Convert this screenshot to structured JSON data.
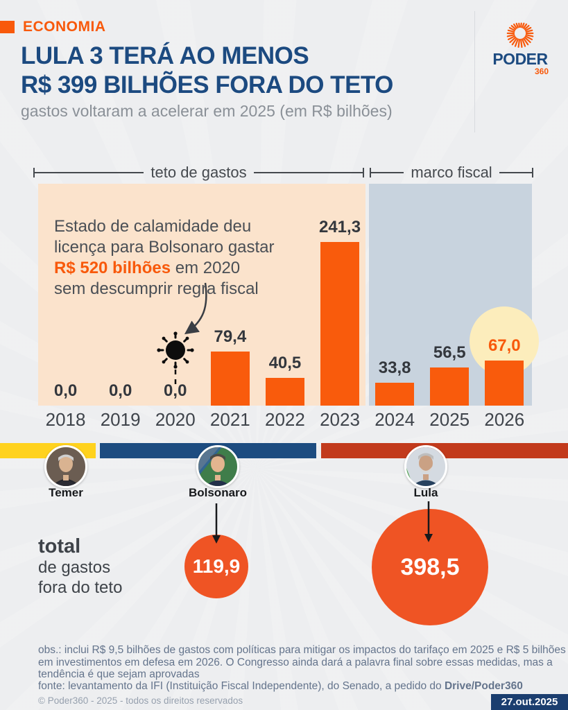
{
  "colors": {
    "accent_orange": "#f8590b",
    "bar_orange": "#f95b0c",
    "title_navy": "#1c4a80",
    "region_teto_bg": "#fbe3cc",
    "region_marco_bg": "#c8d3de",
    "highlight_circle": "#fcedbc",
    "strip_temer": "#ffd21e",
    "strip_bolsonaro": "#1d4c80",
    "strip_lula": "#c23a1c",
    "total_circle": "#ef5424",
    "badge_navy": "#1b3e6f"
  },
  "header": {
    "kicker": "ECONOMIA",
    "title_line1": "LULA 3 TERÁ AO MENOS",
    "title_line2": "R$ 399 BILHÕES FORA DO TETO",
    "subtitle": "gastos voltaram a acelerar em 2025 (em R$ bilhões)",
    "logo_word": "PODER",
    "logo_suffix": "360"
  },
  "chart_data": {
    "type": "bar",
    "title": "LULA 3 TERÁ AO MENOS R$ 399 BILHÕES FORA DO TETO",
    "subtitle": "gastos voltaram a acelerar em 2025 (em R$ bilhões)",
    "unit": "R$ bilhões",
    "categories": [
      "2018",
      "2019",
      "2020",
      "2021",
      "2022",
      "2023",
      "2024",
      "2025",
      "2026"
    ],
    "values": [
      0.0,
      0.0,
      0.0,
      79.4,
      40.5,
      241.3,
      33.8,
      56.5,
      67.0
    ],
    "value_labels": [
      "0,0",
      "0,0",
      "0,0",
      "79,4",
      "40,5",
      "241,3",
      "33,8",
      "56,5",
      "67,0"
    ],
    "regions": [
      {
        "label": "teto de gastos",
        "from": "2018",
        "to": "2023"
      },
      {
        "label": "marco fiscal",
        "from": "2024",
        "to": "2026"
      }
    ],
    "highlight_category": "2026",
    "annotation": {
      "line1": "Estado de calamidade deu",
      "line2": "licença para Bolsonaro gastar",
      "highlight": "R$ 520 bilhões",
      "line3_rest": " em 2020",
      "line4": "sem descumprir regra fiscal",
      "marker": "virus-icon",
      "marker_category": "2020"
    },
    "ylim": [
      0,
      250
    ],
    "grid": false,
    "legend": false
  },
  "timeline": {
    "presidents": [
      {
        "name": "Temer"
      },
      {
        "name": "Bolsonaro"
      },
      {
        "name": "Lula"
      }
    ]
  },
  "totals": {
    "label_bold": "total",
    "label_line2": "de gastos",
    "label_line3": "fora do teto",
    "items": [
      {
        "president": "Bolsonaro",
        "value": "119,9"
      },
      {
        "president": "Lula",
        "value": "398,5"
      }
    ]
  },
  "footer": {
    "obs_line1": "obs.: inclui R$ 9,5 bilhões de gastos com políticas para mitigar os impactos do tarifaço em 2025 e R$ 5 bilhões",
    "obs_line2": "em investimentos em defesa em 2026. O Congresso ainda dará a palavra final sobre essas medidas, mas a",
    "obs_line3": "tendência é que sejam aprovadas",
    "fonte_prefix": "fonte: levantamento da IFI (Instituição Fiscal Independente), do Senado, a pedido do ",
    "fonte_bold": "Drive/Poder360",
    "copyright": "© Poder360 - 2025 - todos os direitos reservados",
    "date": "27.out.2025"
  }
}
